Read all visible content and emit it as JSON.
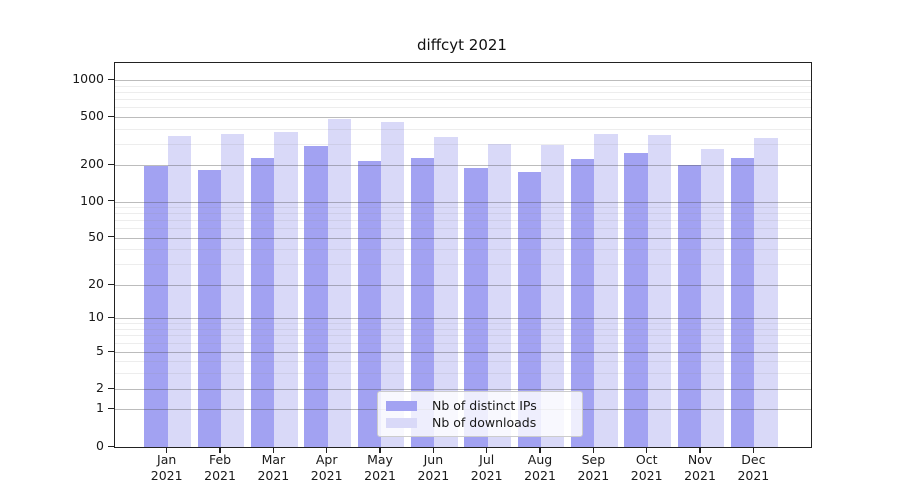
{
  "title": "diffcyt 2021",
  "chart_data": {
    "type": "bar",
    "title": "diffcyt 2021",
    "x_categories": [
      "Jan 2021",
      "Feb 2021",
      "Mar 2021",
      "Apr 2021",
      "May 2021",
      "Jun 2021",
      "Jul 2021",
      "Aug 2021",
      "Sep 2021",
      "Oct 2021",
      "Nov 2021",
      "Dec 2021"
    ],
    "series": [
      {
        "name": "Nb of distinct IPs",
        "color": "#a2a2f2",
        "values": [
          195,
          181,
          227,
          290,
          217,
          227,
          190,
          175,
          225,
          252,
          199,
          227
        ]
      },
      {
        "name": "Nb of downloads",
        "color": "#d9d9f8",
        "values": [
          345,
          360,
          375,
          480,
          455,
          340,
          300,
          295,
          365,
          355,
          270,
          335
        ]
      }
    ],
    "y_axis": {
      "scale": "symlog",
      "ticks": [
        0,
        1,
        2,
        5,
        10,
        20,
        50,
        100,
        200,
        500,
        1000
      ],
      "minor_ticks": [
        3,
        4,
        6,
        7,
        8,
        9,
        30,
        40,
        60,
        70,
        80,
        90,
        300,
        400,
        600,
        700,
        800,
        900
      ]
    },
    "legend": {
      "position": "lower-center",
      "entries": [
        "Nb of distinct IPs",
        "Nb of downloads"
      ]
    },
    "grid": true
  },
  "colors": {
    "axis": "#222222",
    "grid_major": "#c8c8c8",
    "grid_minor": "#e9e9e9",
    "background": "#ffffff",
    "bar_distinct_ips": "#a2a2f2",
    "bar_downloads": "#d9d9f8"
  }
}
